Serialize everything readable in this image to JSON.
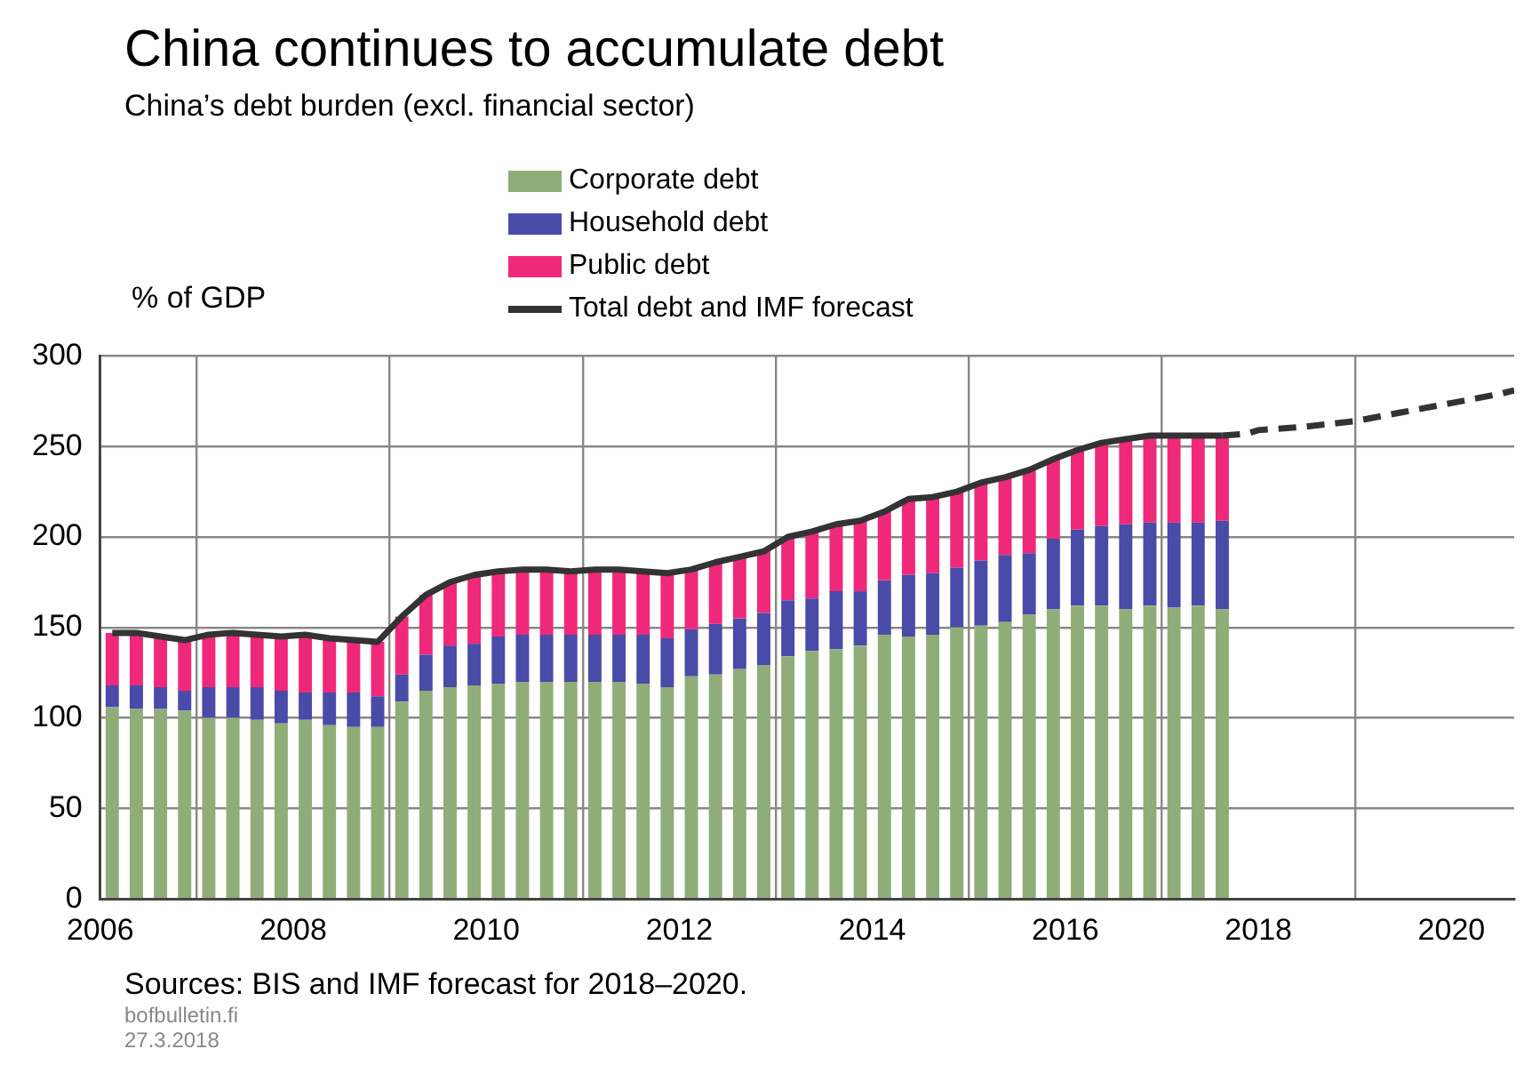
{
  "chart_data": {
    "type": "bar",
    "title": "China continues to accumulate debt",
    "subtitle": "China’s debt burden (excl. financial sector)",
    "ylabel": "% of GDP",
    "annotations": [
      "Sources: BIS and IMF forecast for 2018–2020.",
      "bofbulletin.fi",
      "27.3.2018"
    ],
    "x": [
      2006.125,
      2006.375,
      2006.625,
      2006.875,
      2007.125,
      2007.375,
      2007.625,
      2007.875,
      2008.125,
      2008.375,
      2008.625,
      2008.875,
      2009.125,
      2009.375,
      2009.625,
      2009.875,
      2010.125,
      2010.375,
      2010.625,
      2010.875,
      2011.125,
      2011.375,
      2011.625,
      2011.875,
      2012.125,
      2012.375,
      2012.625,
      2012.875,
      2013.125,
      2013.375,
      2013.625,
      2013.875,
      2014.125,
      2014.375,
      2014.625,
      2014.875,
      2015.125,
      2015.375,
      2015.625,
      2015.875,
      2016.125,
      2016.375,
      2016.625,
      2016.875,
      2017.125,
      2017.375,
      2017.625
    ],
    "stacked": true,
    "series": [
      {
        "name": "Corporate debt",
        "color": "#8fad78",
        "values": [
          106,
          105,
          105,
          104,
          100,
          100,
          99,
          97,
          99,
          96,
          95,
          95,
          109,
          115,
          117,
          118,
          119,
          120,
          120,
          120,
          120,
          120,
          119,
          117,
          123,
          124,
          127,
          129,
          134,
          137,
          138,
          140,
          146,
          145,
          146,
          150,
          151,
          153,
          157,
          160,
          162,
          162,
          160,
          162,
          161,
          162,
          160
        ]
      },
      {
        "name": "Household debt",
        "color": "#4a4aa8",
        "values": [
          12,
          13,
          12,
          11,
          17,
          17,
          18,
          18,
          15,
          18,
          19,
          17,
          15,
          20,
          23,
          23,
          26,
          26,
          26,
          26,
          26,
          26,
          27,
          27,
          26,
          28,
          28,
          29,
          31,
          29,
          32,
          30,
          30,
          34,
          34,
          33,
          36,
          37,
          34,
          39,
          42,
          44,
          47,
          46,
          47,
          46,
          49
        ]
      },
      {
        "name": "Public debt",
        "color": "#f0287a",
        "values": [
          29,
          29,
          28,
          28,
          29,
          30,
          29,
          30,
          32,
          30,
          29,
          30,
          32,
          33,
          35,
          38,
          36,
          36,
          36,
          35,
          36,
          36,
          35,
          36,
          33,
          34,
          34,
          34,
          35,
          37,
          37,
          39,
          38,
          42,
          42,
          42,
          43,
          43,
          46,
          44,
          44,
          46,
          47,
          48,
          48,
          48,
          47
        ]
      },
      {
        "name": "Total debt and IMF forecast",
        "type": "line",
        "color": "#333333",
        "line_style": "solid",
        "values": [
          147,
          147,
          145,
          143,
          146,
          147,
          146,
          145,
          146,
          144,
          143,
          142,
          156,
          168,
          175,
          179,
          181,
          182,
          182,
          181,
          182,
          182,
          181,
          180,
          182,
          186,
          189,
          192,
          200,
          203,
          207,
          209,
          214,
          221,
          222,
          225,
          230,
          233,
          237,
          243,
          248,
          252,
          254,
          256,
          256,
          256,
          256
        ]
      },
      {
        "type": "line",
        "color": "#333333",
        "line_style": "dashed",
        "x": [
          2017.625,
          2017.875,
          2018,
          2018.5,
          2019,
          2019.5,
          2020,
          2020.5,
          2020.65
        ],
        "values": [
          256,
          257,
          259,
          261,
          264,
          269,
          274,
          279,
          281
        ]
      }
    ],
    "xlim": [
      2006,
      2020.65
    ],
    "xticks": [
      2006,
      2008,
      2010,
      2012,
      2014,
      2016,
      2018,
      2020
    ],
    "ylim": [
      0,
      300
    ],
    "yticks": [
      0,
      50,
      100,
      150,
      200,
      250,
      300
    ],
    "grid": true,
    "legend": "top"
  }
}
